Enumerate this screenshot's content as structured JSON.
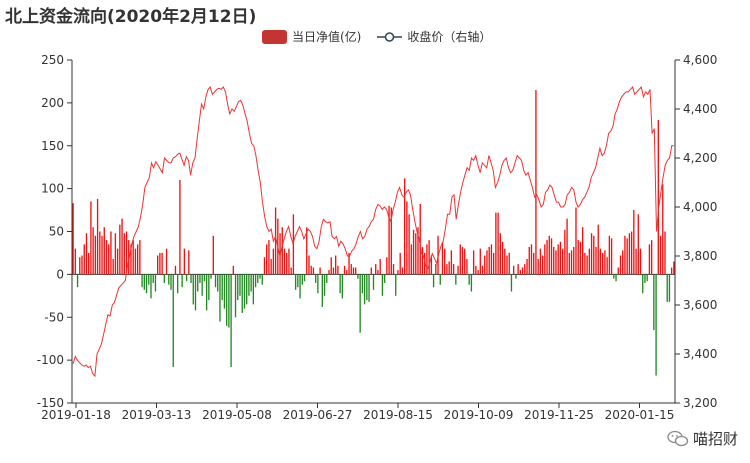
{
  "title": "北上资金流向(2020年2月12日)",
  "watermark": "喵招财",
  "colors": {
    "positive": "#ee1111",
    "negative": "#228822",
    "line": "#ee3333",
    "legend_bar": "#c23531",
    "legend_line": "#2f4554",
    "axis": "#333333"
  },
  "chart_data": {
    "type": "bar",
    "title": "北上资金流向(2020年2月12日)",
    "legend_position": "top-center",
    "grid": false,
    "x_tick_labels": [
      "2019-01-18",
      "2019-03-13",
      "2019-05-08",
      "2019-06-27",
      "2019-08-15",
      "2019-10-09",
      "2019-11-25",
      "2020-01-15"
    ],
    "y_left": {
      "min": -150,
      "max": 250,
      "ticks": [
        -150,
        -100,
        -50,
        0,
        50,
        100,
        150,
        200,
        250
      ],
      "tick_labels": [
        "-150",
        "-100",
        "-50",
        "0",
        "50",
        "100",
        "150",
        "200",
        "250"
      ]
    },
    "y_right": {
      "min": 3200,
      "max": 4600,
      "ticks": [
        3200,
        3400,
        3600,
        3800,
        4000,
        4200,
        4400,
        4600
      ],
      "tick_labels": [
        "3,200",
        "3,400",
        "3,600",
        "3,800",
        "4,000",
        "4,200",
        "4,400",
        "4,600"
      ]
    },
    "series": [
      {
        "name": "当日净值(亿)",
        "type": "bar",
        "axis": "left",
        "values": [
          83,
          30,
          -15,
          20,
          22,
          35,
          48,
          25,
          85,
          55,
          45,
          88,
          50,
          45,
          55,
          40,
          35,
          50,
          18,
          48,
          30,
          58,
          65,
          48,
          50,
          40,
          35,
          40,
          30,
          35,
          40,
          -15,
          -18,
          -22,
          -12,
          -28,
          -10,
          -20,
          22,
          25,
          25,
          -10,
          30,
          -12,
          -18,
          -108,
          10,
          -22,
          110,
          -15,
          30,
          -8,
          28,
          -10,
          -35,
          -42,
          -20,
          -10,
          -25,
          -8,
          -42,
          -30,
          -5,
          45,
          -15,
          -20,
          -55,
          -30,
          -40,
          -60,
          -62,
          -108,
          10,
          -50,
          -30,
          -25,
          -45,
          -40,
          -35,
          -25,
          -20,
          -35,
          -15,
          -10,
          -5,
          -12,
          20,
          35,
          40,
          18,
          30,
          78,
          65,
          48,
          55,
          30,
          25,
          30,
          8,
          70,
          -18,
          -15,
          -28,
          -12,
          -8,
          55,
          22,
          10,
          8,
          -10,
          -22,
          8,
          -38,
          -25,
          -10,
          5,
          20,
          8,
          22,
          10,
          -22,
          -28,
          10,
          5,
          25,
          12,
          8,
          8,
          -5,
          -68,
          -22,
          -35,
          -30,
          -32,
          8,
          -18,
          12,
          5,
          18,
          -25,
          -10,
          20,
          80,
          78,
          12,
          -25,
          5,
          25,
          8,
          112,
          85,
          70,
          35,
          52,
          48,
          55,
          82,
          32,
          25,
          35,
          40,
          22,
          -15,
          12,
          45,
          -12,
          38,
          30,
          12,
          15,
          28,
          12,
          -12,
          10,
          35,
          32,
          30,
          18,
          -12,
          -20,
          28,
          10,
          5,
          30,
          10,
          22,
          28,
          32,
          35,
          25,
          72,
          72,
          48,
          38,
          30,
          22,
          25,
          -20,
          10,
          -5,
          12,
          5,
          8,
          12,
          18,
          32,
          35,
          25,
          215,
          18,
          30,
          22,
          35,
          40,
          45,
          42,
          32,
          28,
          35,
          38,
          30,
          52,
          65,
          25,
          28,
          32,
          78,
          40,
          38,
          55,
          25,
          22,
          30,
          48,
          45,
          32,
          58,
          30,
          25,
          28,
          20,
          45,
          42,
          -5,
          -8,
          8,
          22,
          28,
          45,
          42,
          48,
          50,
          75,
          30,
          70,
          30,
          -22,
          -10,
          -8,
          35,
          40,
          -65,
          -118,
          180,
          45,
          105,
          50,
          -32,
          -32,
          8,
          15
        ]
      },
      {
        "name": "收盘价（右轴）",
        "type": "line",
        "axis": "right",
        "values": [
          3360,
          3390,
          3375,
          3365,
          3355,
          3350,
          3355,
          3345,
          3350,
          3320,
          3310,
          3400,
          3420,
          3440,
          3480,
          3520,
          3560,
          3555,
          3600,
          3610,
          3640,
          3670,
          3680,
          3690,
          3700,
          3760,
          3800,
          3850,
          3880,
          3900,
          3920,
          3960,
          4010,
          4080,
          4100,
          4120,
          4180,
          4160,
          4185,
          4170,
          4155,
          4140,
          4200,
          4190,
          4180,
          4180,
          4200,
          4205,
          4215,
          4220,
          4195,
          4170,
          4205,
          4190,
          4130,
          4180,
          4200,
          4280,
          4350,
          4420,
          4400,
          4450,
          4480,
          4490,
          4460,
          4470,
          4480,
          4485,
          4480,
          4490,
          4470,
          4420,
          4380,
          4400,
          4390,
          4410,
          4430,
          4435,
          4415,
          4380,
          4350,
          4300,
          4260,
          4250,
          4210,
          4150,
          4100,
          4020,
          3960,
          3920,
          3900,
          3910,
          3860,
          3880,
          3840,
          3800,
          3840,
          3870,
          3900,
          3920,
          3880,
          3850,
          3880,
          3900,
          3920,
          3900,
          3870,
          3890,
          3910,
          3900,
          3880,
          3840,
          3830,
          3860,
          3920,
          3950,
          3940,
          3935,
          3940,
          3880,
          3870,
          3880,
          3840,
          3860,
          3850,
          3830,
          3800,
          3800,
          3820,
          3830,
          3850,
          3880,
          3900,
          3870,
          3880,
          3910,
          3920,
          3940,
          3950,
          3990,
          4010,
          4005,
          3990,
          4000,
          3990,
          3960,
          3940,
          3990,
          4020,
          4060,
          4080,
          4050,
          4040,
          4060,
          4070,
          4050,
          3990,
          3940,
          3900,
          3870,
          3810,
          3800,
          3760,
          3750,
          3780,
          3810,
          3790,
          3770,
          3810,
          3840,
          3860,
          3910,
          3970,
          3970,
          4040,
          4050,
          3950,
          4010,
          4060,
          4100,
          4130,
          4160,
          4150,
          4200,
          4190,
          4210,
          4170,
          4140,
          4180,
          4170,
          4160,
          4210,
          4180,
          4150,
          4080,
          4100,
          4130,
          4170,
          4190,
          4200,
          4160,
          4140,
          4150,
          4180,
          4210,
          4200,
          4190,
          4150,
          4130,
          4140,
          4110,
          4080,
          4040,
          4050,
          4030,
          4000,
          4010,
          4060,
          4070,
          4090,
          4080,
          4050,
          4020,
          4020,
          4000,
          4000,
          4010,
          4050,
          4060,
          4080,
          4070,
          4020,
          4000,
          4010,
          4030,
          4040,
          4060,
          4080,
          4120,
          4140,
          4160,
          4200,
          4240,
          4210,
          4220,
          4250,
          4300,
          4310,
          4330,
          4380,
          4400,
          4430,
          4450,
          4460,
          4470,
          4470,
          4480,
          4490,
          4460,
          4470,
          4480,
          4490,
          4450,
          4470,
          4460,
          4480,
          4300,
          4320,
          3900,
          4000,
          4060,
          4120,
          4170,
          4190,
          4200,
          4250,
          4250
        ]
      }
    ]
  }
}
